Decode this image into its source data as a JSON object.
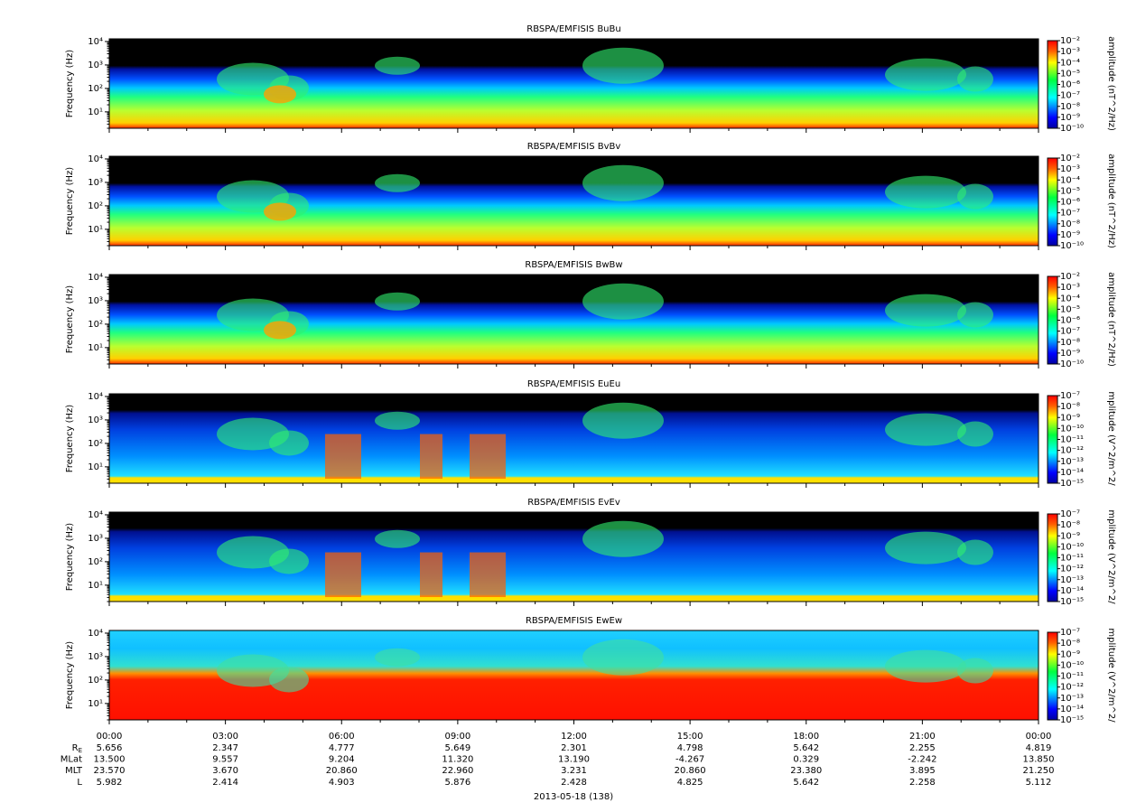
{
  "chart_data": [
    {
      "type": "spectrogram",
      "title": "RBSPA/EMFISIS  BuBu",
      "ylabel": "Frequency (Hz)",
      "ylim": [
        2,
        13000
      ],
      "log_y": true,
      "yticks": [
        {
          "value": 10,
          "label": "10¹"
        },
        {
          "value": 100,
          "label": "10²"
        },
        {
          "value": 1000,
          "label": "10³"
        },
        {
          "value": 10000,
          "label": "10⁴"
        }
      ],
      "zlabel": "amplitude (nT^2/Hz)",
      "zlim": [
        1e-10,
        0.01
      ],
      "zticks": [
        {
          "value": 0.01,
          "label": "10⁻²"
        },
        {
          "value": 0.001,
          "label": "10⁻³"
        },
        {
          "value": 0.0001,
          "label": "10⁻⁴"
        },
        {
          "value": 1e-05,
          "label": "10⁻⁵"
        },
        {
          "value": 1e-06,
          "label": "10⁻⁶"
        },
        {
          "value": 1e-07,
          "label": "10⁻⁷"
        },
        {
          "value": 1e-08,
          "label": "10⁻⁸"
        },
        {
          "value": 1e-09,
          "label": "10⁻⁹"
        },
        {
          "value": 1e-10,
          "label": "10⁻¹⁰"
        }
      ]
    },
    {
      "type": "spectrogram",
      "title": "RBSPA/EMFISIS  BvBv",
      "ylabel": "Frequency (Hz)",
      "ylim": [
        2,
        13000
      ],
      "log_y": true,
      "yticks": [
        {
          "value": 10,
          "label": "10¹"
        },
        {
          "value": 100,
          "label": "10²"
        },
        {
          "value": 1000,
          "label": "10³"
        },
        {
          "value": 10000,
          "label": "10⁴"
        }
      ],
      "zlabel": "amplitude (nT^2/Hz)",
      "zlim": [
        1e-10,
        0.01
      ],
      "zticks": [
        {
          "value": 0.01,
          "label": "10⁻²"
        },
        {
          "value": 0.001,
          "label": "10⁻³"
        },
        {
          "value": 0.0001,
          "label": "10⁻⁴"
        },
        {
          "value": 1e-05,
          "label": "10⁻⁵"
        },
        {
          "value": 1e-06,
          "label": "10⁻⁶"
        },
        {
          "value": 1e-07,
          "label": "10⁻⁷"
        },
        {
          "value": 1e-08,
          "label": "10⁻⁸"
        },
        {
          "value": 1e-09,
          "label": "10⁻⁹"
        },
        {
          "value": 1e-10,
          "label": "10⁻¹⁰"
        }
      ]
    },
    {
      "type": "spectrogram",
      "title": "RBSPA/EMFISIS  BwBw",
      "ylabel": "Frequency (Hz)",
      "ylim": [
        2,
        13000
      ],
      "log_y": true,
      "yticks": [
        {
          "value": 10,
          "label": "10¹"
        },
        {
          "value": 100,
          "label": "10²"
        },
        {
          "value": 1000,
          "label": "10³"
        },
        {
          "value": 10000,
          "label": "10⁴"
        }
      ],
      "zlabel": "amplitude (nT^2/Hz)",
      "zlim": [
        1e-10,
        0.01
      ],
      "zticks": [
        {
          "value": 0.01,
          "label": "10⁻²"
        },
        {
          "value": 0.001,
          "label": "10⁻³"
        },
        {
          "value": 0.0001,
          "label": "10⁻⁴"
        },
        {
          "value": 1e-05,
          "label": "10⁻⁵"
        },
        {
          "value": 1e-06,
          "label": "10⁻⁶"
        },
        {
          "value": 1e-07,
          "label": "10⁻⁷"
        },
        {
          "value": 1e-08,
          "label": "10⁻⁸"
        },
        {
          "value": 1e-09,
          "label": "10⁻⁹"
        },
        {
          "value": 1e-10,
          "label": "10⁻¹⁰"
        }
      ]
    },
    {
      "type": "spectrogram",
      "title": "RBSPA/EMFISIS  EuEu",
      "ylabel": "Frequency (Hz)",
      "ylim": [
        2,
        13000
      ],
      "log_y": true,
      "yticks": [
        {
          "value": 10,
          "label": "10¹"
        },
        {
          "value": 100,
          "label": "10²"
        },
        {
          "value": 1000,
          "label": "10³"
        },
        {
          "value": 10000,
          "label": "10⁴"
        }
      ],
      "zlabel": "mplitude (V^2/m^2/",
      "zlim": [
        1e-15,
        1e-07
      ],
      "zticks": [
        {
          "value": 1e-07,
          "label": "10⁻⁷"
        },
        {
          "value": 1e-08,
          "label": "10⁻⁸"
        },
        {
          "value": 1e-09,
          "label": "10⁻⁹"
        },
        {
          "value": 1e-10,
          "label": "10⁻¹⁰"
        },
        {
          "value": 1e-11,
          "label": "10⁻¹¹"
        },
        {
          "value": 1e-12,
          "label": "10⁻¹²"
        },
        {
          "value": 1e-13,
          "label": "10⁻¹³"
        },
        {
          "value": 1e-14,
          "label": "10⁻¹⁴"
        },
        {
          "value": 1e-15,
          "label": "10⁻¹⁵"
        }
      ]
    },
    {
      "type": "spectrogram",
      "title": "RBSPA/EMFISIS  EvEv",
      "ylabel": "Frequency (Hz)",
      "ylim": [
        2,
        13000
      ],
      "log_y": true,
      "yticks": [
        {
          "value": 10,
          "label": "10¹"
        },
        {
          "value": 100,
          "label": "10²"
        },
        {
          "value": 1000,
          "label": "10³"
        },
        {
          "value": 10000,
          "label": "10⁴"
        }
      ],
      "zlabel": "mplitude (V^2/m^2/",
      "zlim": [
        1e-15,
        1e-07
      ],
      "zticks": [
        {
          "value": 1e-07,
          "label": "10⁻⁷"
        },
        {
          "value": 1e-08,
          "label": "10⁻⁸"
        },
        {
          "value": 1e-09,
          "label": "10⁻⁹"
        },
        {
          "value": 1e-10,
          "label": "10⁻¹⁰"
        },
        {
          "value": 1e-11,
          "label": "10⁻¹¹"
        },
        {
          "value": 1e-12,
          "label": "10⁻¹²"
        },
        {
          "value": 1e-13,
          "label": "10⁻¹³"
        },
        {
          "value": 1e-14,
          "label": "10⁻¹⁴"
        },
        {
          "value": 1e-15,
          "label": "10⁻¹⁵"
        }
      ]
    },
    {
      "type": "spectrogram",
      "title": "RBSPA/EMFISIS  EwEw",
      "ylabel": "Frequency (Hz)",
      "ylim": [
        2,
        13000
      ],
      "log_y": true,
      "yticks": [
        {
          "value": 10,
          "label": "10¹"
        },
        {
          "value": 100,
          "label": "10²"
        },
        {
          "value": 1000,
          "label": "10³"
        },
        {
          "value": 10000,
          "label": "10⁴"
        }
      ],
      "zlabel": "mplitude (V^2/m^2/",
      "zlim": [
        1e-15,
        1e-07
      ],
      "zticks": [
        {
          "value": 1e-07,
          "label": "10⁻⁷"
        },
        {
          "value": 1e-08,
          "label": "10⁻⁸"
        },
        {
          "value": 1e-09,
          "label": "10⁻⁹"
        },
        {
          "value": 1e-10,
          "label": "10⁻¹⁰"
        },
        {
          "value": 1e-11,
          "label": "10⁻¹¹"
        },
        {
          "value": 1e-12,
          "label": "10⁻¹²"
        },
        {
          "value": 1e-13,
          "label": "10⁻¹³"
        },
        {
          "value": 1e-14,
          "label": "10⁻¹⁴"
        },
        {
          "value": 1e-15,
          "label": "10⁻¹⁵"
        }
      ]
    }
  ],
  "time_axis": {
    "ticks": [
      "00:00",
      "03:00",
      "06:00",
      "09:00",
      "12:00",
      "15:00",
      "18:00",
      "21:00",
      "00:00"
    ],
    "label": "2013-05-18 (138)"
  },
  "ephemeris": {
    "rows": [
      {
        "label": "RE",
        "values": [
          "5.656",
          "2.347",
          "4.777",
          "5.649",
          "2.301",
          "4.798",
          "5.642",
          "2.255",
          "4.819"
        ]
      },
      {
        "label": "MLat",
        "values": [
          "13.500",
          "9.557",
          "9.204",
          "11.320",
          "13.190",
          "-4.267",
          "0.329",
          "-2.242",
          "13.850"
        ]
      },
      {
        "label": "MLT",
        "values": [
          "23.570",
          "3.670",
          "20.860",
          "22.960",
          "3.231",
          "20.860",
          "23.380",
          "3.895",
          "21.250"
        ]
      },
      {
        "label": "L",
        "values": [
          "5.982",
          "2.414",
          "4.903",
          "5.876",
          "2.428",
          "4.825",
          "5.642",
          "2.258",
          "5.112"
        ]
      }
    ]
  }
}
